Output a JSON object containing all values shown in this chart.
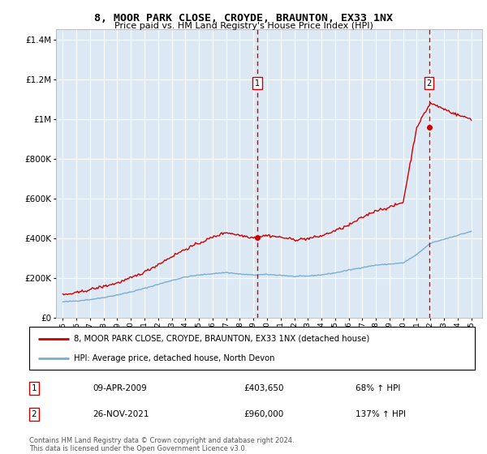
{
  "title": "8, MOOR PARK CLOSE, CROYDE, BRAUNTON, EX33 1NX",
  "subtitle": "Price paid vs. HM Land Registry's House Price Index (HPI)",
  "background_color": "#ffffff",
  "plot_bg_color": "#dce9f5",
  "grid_color": "#ffffff",
  "sale1": {
    "date": "09-APR-2009",
    "price": 403650,
    "label": "1",
    "year": 2009.27
  },
  "sale2": {
    "date": "26-NOV-2021",
    "price": 960000,
    "label": "2",
    "year": 2021.9
  },
  "legend_line1": "8, MOOR PARK CLOSE, CROYDE, BRAUNTON, EX33 1NX (detached house)",
  "legend_line2": "HPI: Average price, detached house, North Devon",
  "table_row1": [
    "1",
    "09-APR-2009",
    "£403,650",
    "68% ↑ HPI"
  ],
  "table_row2": [
    "2",
    "26-NOV-2021",
    "£960,000",
    "137% ↑ HPI"
  ],
  "footnote": "Contains HM Land Registry data © Crown copyright and database right 2024.\nThis data is licensed under the Open Government Licence v3.0.",
  "red_color": "#cc0000",
  "blue_color": "#7aadcf",
  "dashed_color": "#cc0000",
  "ylim": [
    0,
    1450000
  ],
  "xlim": [
    1994.5,
    2025.8
  ],
  "yticks": [
    0,
    200000,
    400000,
    600000,
    800000,
    1000000,
    1200000,
    1400000
  ],
  "xticks": [
    1995,
    1996,
    1997,
    1998,
    1999,
    2000,
    2001,
    2002,
    2003,
    2004,
    2005,
    2006,
    2007,
    2008,
    2009,
    2010,
    2011,
    2012,
    2013,
    2014,
    2015,
    2016,
    2017,
    2018,
    2019,
    2020,
    2021,
    2022,
    2023,
    2024,
    2025
  ],
  "hpi_base": [
    80000,
    85000,
    92000,
    102000,
    115000,
    130000,
    148000,
    168000,
    188000,
    205000,
    215000,
    222000,
    228000,
    220000,
    215000,
    218000,
    214000,
    208000,
    210000,
    216000,
    226000,
    240000,
    253000,
    265000,
    270000,
    276000,
    318000,
    375000,
    395000,
    415000,
    435000
  ],
  "red_base": [
    115000,
    125000,
    142000,
    158000,
    175000,
    200000,
    230000,
    268000,
    308000,
    345000,
    375000,
    405000,
    430000,
    415000,
    403650,
    415000,
    405000,
    393000,
    398000,
    412000,
    438000,
    465000,
    505000,
    540000,
    555000,
    582000,
    960000,
    1080000,
    1050000,
    1020000,
    1000000
  ]
}
